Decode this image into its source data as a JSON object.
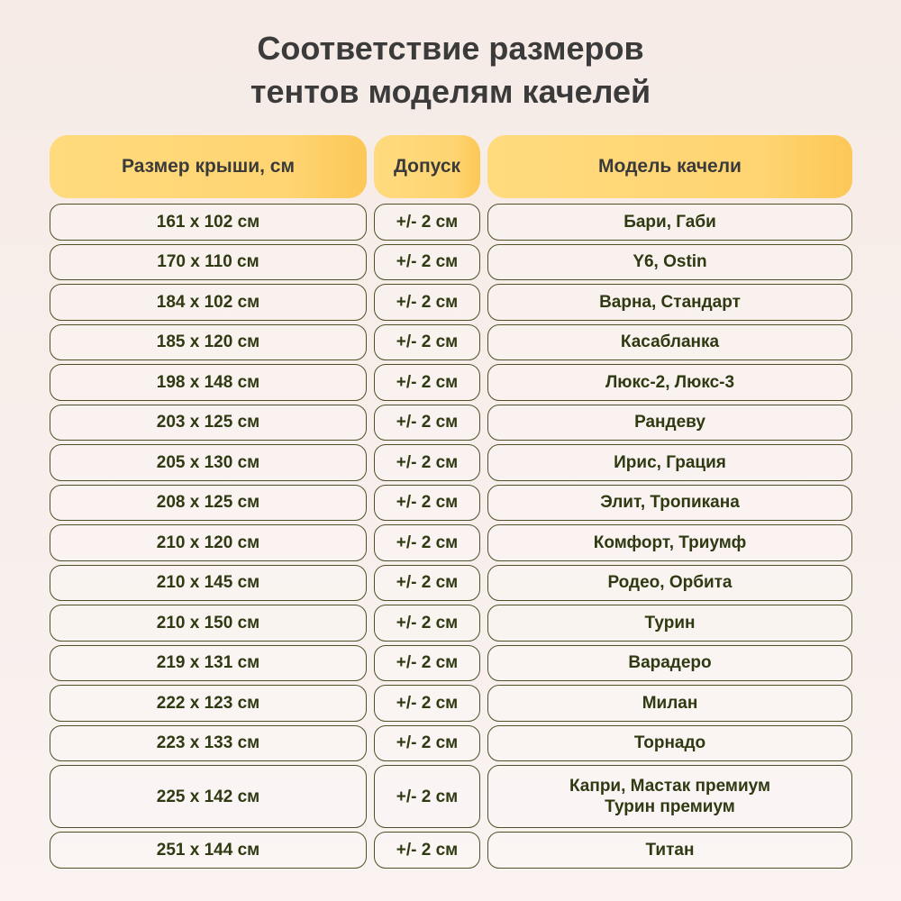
{
  "title_line1": "Соответствие размеров",
  "title_line2": "тентов моделям качелей",
  "headers": [
    "Размер крыши, см",
    "Допуск",
    "Модель качели"
  ],
  "rows": [
    {
      "size": "161 x 102 см",
      "tolerance": "+/- 2 см",
      "models": [
        "Бари, Габи"
      ]
    },
    {
      "size": "170 x 110 см",
      "tolerance": "+/- 2 см",
      "models": [
        "Y6, Ostin"
      ]
    },
    {
      "size": "184 x 102 см",
      "tolerance": "+/- 2 см",
      "models": [
        "Варна, Стандарт"
      ]
    },
    {
      "size": "185 x 120 см",
      "tolerance": "+/- 2 см",
      "models": [
        "Касабланка"
      ]
    },
    {
      "size": "198 x 148 см",
      "tolerance": "+/- 2 см",
      "models": [
        "Люкс-2, Люкс-3"
      ]
    },
    {
      "size": "203 x 125 см",
      "tolerance": "+/- 2 см",
      "models": [
        "Рандеву"
      ]
    },
    {
      "size": "205 x 130 см",
      "tolerance": "+/- 2 см",
      "models": [
        "Ирис, Грация"
      ]
    },
    {
      "size": "208 x 125 см",
      "tolerance": "+/- 2 см",
      "models": [
        "Элит, Тропикана"
      ]
    },
    {
      "size": "210 x 120 см",
      "tolerance": "+/- 2 см",
      "models": [
        "Комфорт, Триумф"
      ]
    },
    {
      "size": "210 x 145 см",
      "tolerance": "+/- 2 см",
      "models": [
        "Родео, Орбита"
      ]
    },
    {
      "size": "210 x 150 см",
      "tolerance": "+/- 2 см",
      "models": [
        "Турин"
      ]
    },
    {
      "size": "219 x 131 см",
      "tolerance": "+/- 2 см",
      "models": [
        "Варадеро"
      ]
    },
    {
      "size": "222 x 123 см",
      "tolerance": "+/- 2 см",
      "models": [
        "Милан"
      ]
    },
    {
      "size": "223 x 133 см",
      "tolerance": "+/- 2 см",
      "models": [
        "Торнадо"
      ]
    },
    {
      "size": "225 x 142 см",
      "tolerance": "+/- 2 см",
      "models": [
        "Капри, Мастак премиум",
        "Турин премиум"
      ]
    },
    {
      "size": "251 x 144 см",
      "tolerance": "+/- 2 см",
      "models": [
        "Титан"
      ]
    }
  ],
  "colors": {
    "header_fill": "#ffd472",
    "text": "#2f3a12",
    "title": "#3b3b3b",
    "border": "#4c5128"
  }
}
